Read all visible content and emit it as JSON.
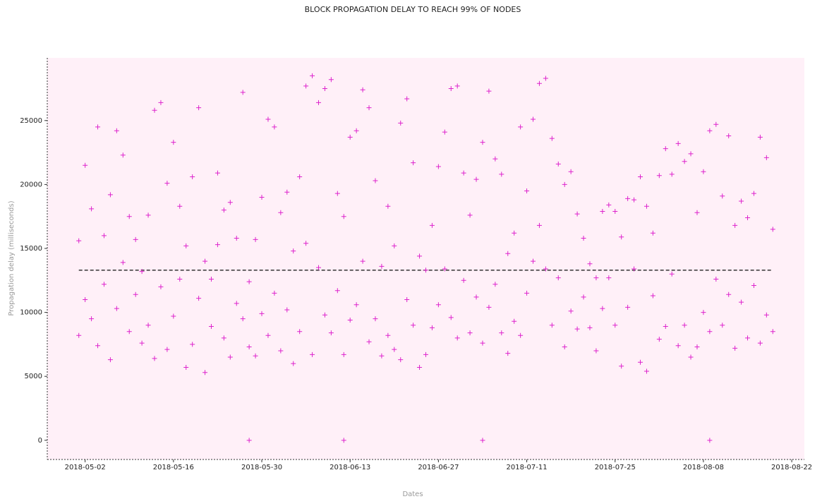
{
  "chart_data": {
    "type": "scatter",
    "title": "BLOCK PROPAGATION DELAY TO REACH 99% OF NODES",
    "x_label": "Dates",
    "y_label": "Propagation delay (milliseconds)",
    "color": "#dd22cc",
    "background": "#fff0f8",
    "marker": "+",
    "xlim": [
      "2018-04-26",
      "2018-08-24"
    ],
    "xticks": [
      "2018-05-02",
      "2018-05-16",
      "2018-05-30",
      "2018-06-13",
      "2018-06-27",
      "2018-07-11",
      "2018-07-25",
      "2018-08-08",
      "2018-08-22"
    ],
    "ylim": [
      -1500,
      29900
    ],
    "yticks": [
      0,
      5000,
      10000,
      15000,
      20000,
      25000
    ],
    "mean_line": 13300,
    "x": [
      "2018-05-01",
      "2018-05-01",
      "2018-05-02",
      "2018-05-02",
      "2018-05-03",
      "2018-05-03",
      "2018-05-04",
      "2018-05-04",
      "2018-05-05",
      "2018-05-05",
      "2018-05-06",
      "2018-05-06",
      "2018-05-07",
      "2018-05-07",
      "2018-05-08",
      "2018-05-08",
      "2018-05-09",
      "2018-05-09",
      "2018-05-10",
      "2018-05-10",
      "2018-05-11",
      "2018-05-11",
      "2018-05-12",
      "2018-05-12",
      "2018-05-13",
      "2018-05-13",
      "2018-05-14",
      "2018-05-14",
      "2018-05-15",
      "2018-05-15",
      "2018-05-16",
      "2018-05-16",
      "2018-05-17",
      "2018-05-17",
      "2018-05-18",
      "2018-05-18",
      "2018-05-19",
      "2018-05-19",
      "2018-05-20",
      "2018-05-20",
      "2018-05-21",
      "2018-05-21",
      "2018-05-22",
      "2018-05-22",
      "2018-05-23",
      "2018-05-23",
      "2018-05-24",
      "2018-05-24",
      "2018-05-25",
      "2018-05-25",
      "2018-05-26",
      "2018-05-26",
      "2018-05-27",
      "2018-05-27",
      "2018-05-28",
      "2018-05-28",
      "2018-05-29",
      "2018-05-29",
      "2018-05-30",
      "2018-05-30",
      "2018-05-31",
      "2018-05-31",
      "2018-06-01",
      "2018-06-01",
      "2018-06-02",
      "2018-06-02",
      "2018-06-03",
      "2018-06-03",
      "2018-06-04",
      "2018-06-04",
      "2018-06-05",
      "2018-06-05",
      "2018-06-06",
      "2018-06-06",
      "2018-06-07",
      "2018-06-07",
      "2018-06-08",
      "2018-06-08",
      "2018-06-09",
      "2018-06-09",
      "2018-06-10",
      "2018-06-10",
      "2018-06-11",
      "2018-06-11",
      "2018-06-12",
      "2018-06-12",
      "2018-06-13",
      "2018-06-13",
      "2018-06-14",
      "2018-06-14",
      "2018-06-15",
      "2018-06-15",
      "2018-06-16",
      "2018-06-16",
      "2018-06-17",
      "2018-06-17",
      "2018-06-18",
      "2018-06-18",
      "2018-06-19",
      "2018-06-19",
      "2018-06-20",
      "2018-06-20",
      "2018-06-21",
      "2018-06-21",
      "2018-06-22",
      "2018-06-22",
      "2018-06-23",
      "2018-06-23",
      "2018-06-24",
      "2018-06-24",
      "2018-06-25",
      "2018-06-25",
      "2018-06-26",
      "2018-06-26",
      "2018-06-27",
      "2018-06-27",
      "2018-06-28",
      "2018-06-28",
      "2018-06-29",
      "2018-06-29",
      "2018-06-30",
      "2018-06-30",
      "2018-07-01",
      "2018-07-01",
      "2018-07-02",
      "2018-07-02",
      "2018-07-03",
      "2018-07-03",
      "2018-07-04",
      "2018-07-04",
      "2018-07-05",
      "2018-07-05",
      "2018-07-06",
      "2018-07-06",
      "2018-07-07",
      "2018-07-07",
      "2018-07-08",
      "2018-07-08",
      "2018-07-09",
      "2018-07-09",
      "2018-07-10",
      "2018-07-10",
      "2018-07-11",
      "2018-07-11",
      "2018-07-12",
      "2018-07-12",
      "2018-07-13",
      "2018-07-13",
      "2018-07-14",
      "2018-07-14",
      "2018-07-15",
      "2018-07-15",
      "2018-07-16",
      "2018-07-16",
      "2018-07-17",
      "2018-07-17",
      "2018-07-18",
      "2018-07-18",
      "2018-07-19",
      "2018-07-19",
      "2018-07-20",
      "2018-07-20",
      "2018-07-21",
      "2018-07-21",
      "2018-07-22",
      "2018-07-22",
      "2018-07-23",
      "2018-07-23",
      "2018-07-24",
      "2018-07-24",
      "2018-07-25",
      "2018-07-25",
      "2018-07-26",
      "2018-07-26",
      "2018-07-27",
      "2018-07-27",
      "2018-07-28",
      "2018-07-28",
      "2018-07-29",
      "2018-07-29",
      "2018-07-30",
      "2018-07-30",
      "2018-07-31",
      "2018-07-31",
      "2018-08-01",
      "2018-08-01",
      "2018-08-02",
      "2018-08-02",
      "2018-08-03",
      "2018-08-03",
      "2018-08-04",
      "2018-08-04",
      "2018-08-05",
      "2018-08-05",
      "2018-08-06",
      "2018-08-06",
      "2018-08-07",
      "2018-08-07",
      "2018-08-08",
      "2018-08-08",
      "2018-08-09",
      "2018-08-09",
      "2018-08-10",
      "2018-08-10",
      "2018-08-11",
      "2018-08-11",
      "2018-08-12",
      "2018-08-12",
      "2018-08-13",
      "2018-08-13",
      "2018-08-14",
      "2018-08-14",
      "2018-08-15",
      "2018-08-15",
      "2018-08-16",
      "2018-08-16",
      "2018-08-17",
      "2018-08-17",
      "2018-08-18",
      "2018-08-18",
      "2018-08-19",
      "2018-08-19",
      "2018-05-28",
      "2018-06-12",
      "2018-07-04",
      "2018-08-09"
    ],
    "values": [
      8200,
      15600,
      11000,
      21500,
      9500,
      18100,
      7400,
      24500,
      12200,
      16000,
      6300,
      19200,
      10300,
      24200,
      13900,
      22300,
      8500,
      17500,
      11400,
      15700,
      7600,
      13200,
      9000,
      17600,
      6400,
      25800,
      12000,
      26400,
      7100,
      20100,
      9700,
      23300,
      12600,
      18300,
      5700,
      15200,
      7500,
      20600,
      11100,
      26000,
      5300,
      14000,
      8900,
      12600,
      15300,
      20900,
      8000,
      18000,
      6500,
      18600,
      10700,
      15800,
      9500,
      27200,
      7300,
      12400,
      6600,
      15700,
      9900,
      19000,
      8200,
      25100,
      11500,
      24500,
      7000,
      17800,
      10200,
      19400,
      6000,
      14800,
      8500,
      20600,
      15400,
      27700,
      6700,
      28500,
      13500,
      26400,
      9800,
      27500,
      8400,
      28200,
      11700,
      19300,
      6700,
      17500,
      9400,
      23700,
      10600,
      24200,
      14000,
      27400,
      7700,
      26000,
      9500,
      20300,
      6600,
      13600,
      8200,
      18300,
      7100,
      15200,
      6300,
      24800,
      11000,
      26700,
      9000,
      21700,
      5700,
      14400,
      6700,
      13300,
      8800,
      16800,
      10600,
      21400,
      13400,
      24100,
      9600,
      27500,
      8000,
      27700,
      12500,
      20900,
      8400,
      17600,
      11200,
      20400,
      7600,
      23300,
      10400,
      27300,
      12200,
      22000,
      8400,
      20800,
      6800,
      14600,
      9300,
      16200,
      8200,
      24500,
      11500,
      19500,
      14000,
      25100,
      16800,
      27900,
      13400,
      28300,
      9000,
      23600,
      12700,
      21600,
      7300,
      20000,
      10100,
      21000,
      8700,
      17700,
      11200,
      15800,
      8800,
      13800,
      7000,
      12700,
      10300,
      17900,
      12700,
      18400,
      9000,
      17900,
      5800,
      15900,
      10400,
      18900,
      13400,
      18800,
      6100,
      20600,
      5400,
      18300,
      11300,
      16200,
      7900,
      20700,
      8900,
      22800,
      13000,
      20800,
      7400,
      23200,
      9000,
      21800,
      6500,
      22400,
      7300,
      17800,
      10000,
      21000,
      8500,
      24200,
      12600,
      24700,
      9000,
      19100,
      11400,
      23800,
      7200,
      16800,
      10800,
      18700,
      8000,
      17400,
      12100,
      19300,
      7600,
      23700,
      9800,
      22100,
      8500,
      16500,
      0,
      0,
      0,
      0
    ]
  }
}
